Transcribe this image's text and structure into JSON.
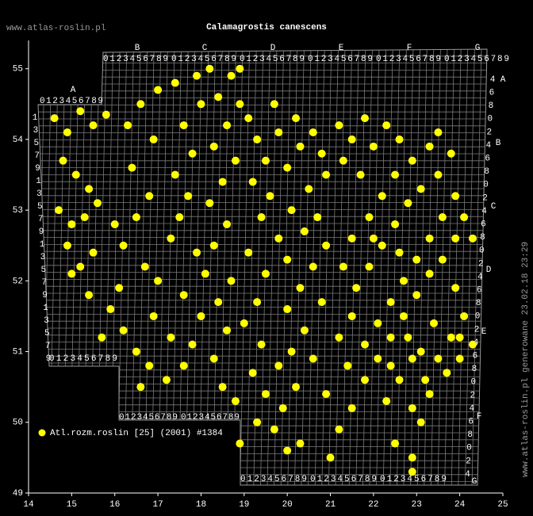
{
  "header": {
    "site": "www.atlas-roslin.pl",
    "title": "Calamagrostis canescens"
  },
  "footer": "www.atlas-roslin.pl generowane 23.02.18 23:29",
  "grid": {
    "digits": "0123456789",
    "left_letter": "A",
    "top_letters": [
      "B",
      "C",
      "D",
      "E",
      "F",
      "G"
    ],
    "right_letters": [
      "A",
      "B",
      "C",
      "D",
      "E",
      "F",
      "G"
    ],
    "left_digits": [
      "1",
      "3",
      "5",
      "7",
      "9",
      "1",
      "3",
      "5",
      "7",
      "9",
      "1",
      "3",
      "5",
      "7",
      "9",
      "1",
      "3",
      "5",
      "7",
      "9"
    ],
    "right_digits": [
      "4",
      "6",
      "8",
      "0",
      "2",
      "4",
      "6",
      "8",
      "0",
      "2",
      "4",
      "6",
      "8",
      "0",
      "2",
      "4",
      "6",
      "8",
      "0",
      "2",
      "4",
      "6",
      "8",
      "0",
      "2",
      "4",
      "6",
      "8",
      "0",
      "2",
      "4"
    ]
  },
  "chart_data": {
    "type": "scatter",
    "xlim": [
      14,
      25
    ],
    "ylim": [
      49,
      55.4
    ],
    "xticks": [
      14,
      15,
      16,
      17,
      18,
      19,
      20,
      21,
      22,
      23,
      24,
      25
    ],
    "yticks": [
      49,
      50,
      51,
      52,
      53,
      54,
      55
    ],
    "series": [
      {
        "name": "Atl.rozm.roslin [25] (2001) #1384",
        "color": "#ffff00",
        "x": [
          14.6,
          14.9,
          15.2,
          15.5,
          15.8,
          14.8,
          15.1,
          15.4,
          14.7,
          15.0,
          15.3,
          15.6,
          16.0,
          14.9,
          15.2,
          15.5,
          16.2,
          16.5,
          16.8,
          16.4,
          16.9,
          16.3,
          16.6,
          17.0,
          15.0,
          15.4,
          15.9,
          16.2,
          15.7,
          16.5,
          16.8,
          17.2,
          16.6,
          16.1,
          16.7,
          17.0,
          16.9,
          17.3,
          17.3,
          17.5,
          17.7,
          17.4,
          17.8,
          17.6,
          18.0,
          17.4,
          17.9,
          18.2,
          17.9,
          18.1,
          17.6,
          18.0,
          17.8,
          18.3,
          17.6,
          18.5,
          18.8,
          18.6,
          18.4,
          18.7,
          18.3,
          18.6,
          18.2,
          18.5,
          18.8,
          18.3,
          18.6,
          18.9,
          18.4,
          18.7,
          18.9,
          19.1,
          19.3,
          19.5,
          19.2,
          19.6,
          19.4,
          19.8,
          19.1,
          19.5,
          19.3,
          19.0,
          19.4,
          19.2,
          19.5,
          19.3,
          19.7,
          19.9,
          20.2,
          19.8,
          20.1,
          20.4,
          20.0,
          20.3,
          20.6,
          20.0,
          20.4,
          20.1,
          20.5,
          20.0,
          20.3,
          19.8,
          20.2,
          20.6,
          19.7,
          20.8,
          20.9,
          20.7,
          20.9,
          20.8,
          20.6,
          20.9,
          20.3,
          21.2,
          21.5,
          20.0,
          21.2,
          21.5,
          21.8,
          21.3,
          21.7,
          22.0,
          22.3,
          22.6,
          22.9,
          23.3,
          23.5,
          22.5,
          22.2,
          21.9,
          21.5,
          21.3,
          21.6,
          21.9,
          22.2,
          22.5,
          22.8,
          23.1,
          23.5,
          23.8,
          23.9,
          24.1,
          24.3,
          23.6,
          23.3,
          23.0,
          22.7,
          22.4,
          22.1,
          21.8,
          21.5,
          21.2,
          21.4,
          21.8,
          22.1,
          22.4,
          22.7,
          23.0,
          23.3,
          23.6,
          23.9,
          24.1,
          23.8,
          23.5,
          23.2,
          22.9,
          22.6,
          22.3,
          22.9,
          23.3,
          23.7,
          24.0,
          24.3,
          24.0,
          23.4,
          22.8,
          23.1,
          22.4,
          22.0,
          22.6,
          23.9,
          22.9,
          22.9,
          22.5,
          23.1,
          21.0,
          18.9
        ],
        "values": [
          54.3,
          54.1,
          54.4,
          54.2,
          54.35,
          53.7,
          53.5,
          53.3,
          53.0,
          52.8,
          52.9,
          53.1,
          52.8,
          52.5,
          52.2,
          52.4,
          52.5,
          52.9,
          53.2,
          53.6,
          54.0,
          54.2,
          54.5,
          54.7,
          52.1,
          51.8,
          51.6,
          51.3,
          51.2,
          51.0,
          50.8,
          50.6,
          50.5,
          51.9,
          52.2,
          52.0,
          51.5,
          51.2,
          52.6,
          52.9,
          53.2,
          53.5,
          53.8,
          54.2,
          54.5,
          54.8,
          54.9,
          55.0,
          52.4,
          52.1,
          51.8,
          51.5,
          51.1,
          50.9,
          50.8,
          50.5,
          50.3,
          51.3,
          51.7,
          52.0,
          52.5,
          52.8,
          53.1,
          53.4,
          53.7,
          53.9,
          54.2,
          54.5,
          54.6,
          54.9,
          55.0,
          54.3,
          54.0,
          53.7,
          53.4,
          53.2,
          52.9,
          52.6,
          52.4,
          52.1,
          51.7,
          51.4,
          51.1,
          50.7,
          50.4,
          50.0,
          49.9,
          50.2,
          50.5,
          50.8,
          51.0,
          51.3,
          51.6,
          51.9,
          52.2,
          52.3,
          52.7,
          53.0,
          53.3,
          53.6,
          53.9,
          54.1,
          54.3,
          54.1,
          54.5,
          53.8,
          53.5,
          52.9,
          52.5,
          51.7,
          50.9,
          50.4,
          49.7,
          49.9,
          50.2,
          49.6,
          54.2,
          54.0,
          54.3,
          53.7,
          53.5,
          53.9,
          54.2,
          54.0,
          53.7,
          53.9,
          54.1,
          53.5,
          53.2,
          52.9,
          52.6,
          52.2,
          51.9,
          52.2,
          52.5,
          52.8,
          53.1,
          53.3,
          53.5,
          53.8,
          53.2,
          52.9,
          52.6,
          52.9,
          52.6,
          52.3,
          52.0,
          51.7,
          51.4,
          51.1,
          51.5,
          51.2,
          50.8,
          50.6,
          50.9,
          51.2,
          51.5,
          51.8,
          52.1,
          52.3,
          51.9,
          51.5,
          51.2,
          50.9,
          50.6,
          50.9,
          50.6,
          50.3,
          50.2,
          50.4,
          50.7,
          50.9,
          51.1,
          51.2,
          51.4,
          51.2,
          51.0,
          50.8,
          52.6,
          52.4,
          52.6,
          49.5,
          49.3,
          49.7,
          50.0,
          49.5,
          49.7
        ]
      }
    ]
  }
}
